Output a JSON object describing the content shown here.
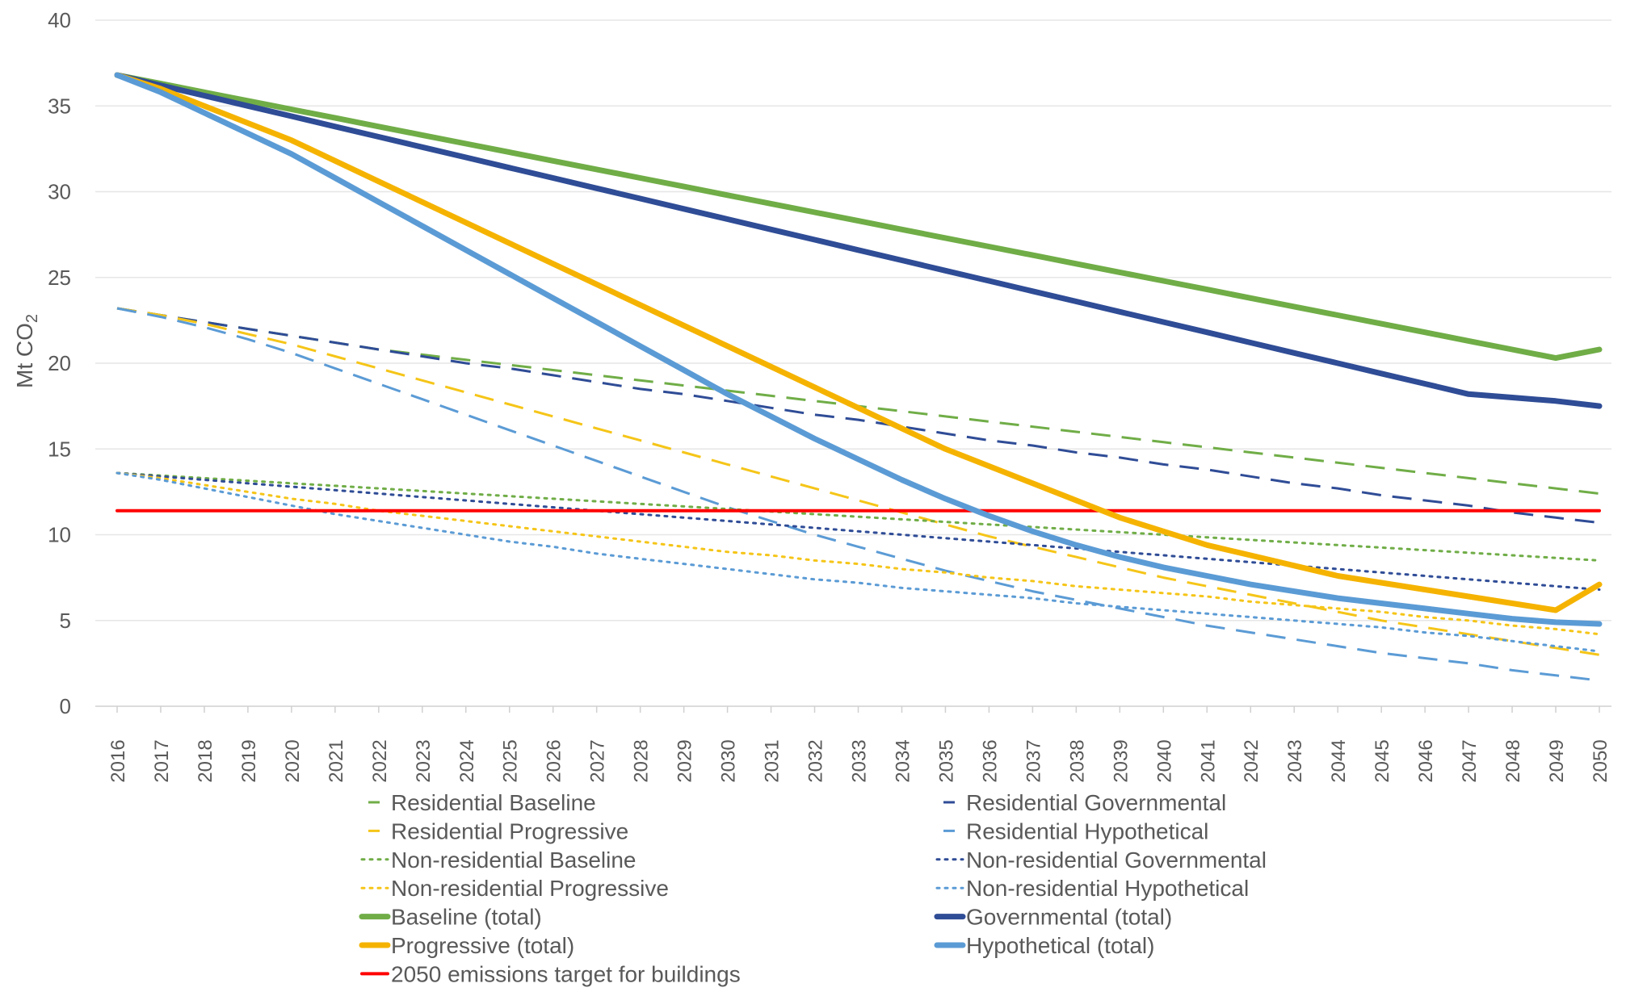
{
  "chart_data": {
    "type": "line",
    "ylabel_main": "Mt CO",
    "ylabel_sub": "2",
    "ylim": [
      0,
      40
    ],
    "yticks": [
      0,
      5,
      10,
      15,
      20,
      25,
      30,
      35,
      40
    ],
    "grid": true,
    "legend_position": "bottom",
    "x": [
      2016,
      2017,
      2018,
      2019,
      2020,
      2021,
      2022,
      2023,
      2024,
      2025,
      2026,
      2027,
      2028,
      2029,
      2030,
      2031,
      2032,
      2033,
      2034,
      2035,
      2036,
      2037,
      2038,
      2039,
      2040,
      2041,
      2042,
      2043,
      2044,
      2045,
      2046,
      2047,
      2048,
      2049,
      2050
    ],
    "series": [
      {
        "name": "Residential Baseline",
        "color": "#70ad47",
        "style": "dashed",
        "width": "thin",
        "values": [
          23.2,
          22.8,
          22.4,
          22.0,
          21.6,
          21.2,
          20.8,
          20.5,
          20.2,
          19.9,
          19.6,
          19.3,
          19.0,
          18.7,
          18.4,
          18.1,
          17.8,
          17.5,
          17.2,
          16.9,
          16.6,
          16.3,
          16.0,
          15.7,
          15.4,
          15.1,
          14.8,
          14.5,
          14.2,
          13.9,
          13.6,
          13.3,
          13.0,
          12.7,
          12.4
        ]
      },
      {
        "name": "Residential Governmental",
        "color": "#2f4c96",
        "style": "dashed",
        "width": "thin",
        "values": [
          23.2,
          22.8,
          22.4,
          22.0,
          21.6,
          21.2,
          20.8,
          20.4,
          20.0,
          19.7,
          19.3,
          18.9,
          18.5,
          18.2,
          17.8,
          17.4,
          17.0,
          16.7,
          16.3,
          15.9,
          15.5,
          15.2,
          14.8,
          14.5,
          14.1,
          13.8,
          13.4,
          13.0,
          12.7,
          12.3,
          12.0,
          11.7,
          11.3,
          11.0,
          10.7
        ]
      },
      {
        "name": "Residential Progressive",
        "color": "#f5c518",
        "style": "dashed",
        "width": "thin",
        "values": [
          23.2,
          22.8,
          22.3,
          21.7,
          21.1,
          20.4,
          19.7,
          19.0,
          18.3,
          17.6,
          16.9,
          16.2,
          15.5,
          14.8,
          14.1,
          13.4,
          12.7,
          12.0,
          11.3,
          10.6,
          9.9,
          9.3,
          8.7,
          8.1,
          7.5,
          7.0,
          6.5,
          6.0,
          5.5,
          5.0,
          4.6,
          4.2,
          3.8,
          3.4,
          3.0
        ]
      },
      {
        "name": "Residential Hypothetical",
        "color": "#5b9bd5",
        "style": "dashed",
        "width": "thin",
        "values": [
          23.2,
          22.7,
          22.1,
          21.4,
          20.6,
          19.7,
          18.8,
          17.9,
          17.0,
          16.1,
          15.2,
          14.3,
          13.4,
          12.5,
          11.6,
          10.8,
          10.0,
          9.3,
          8.6,
          7.9,
          7.3,
          6.7,
          6.2,
          5.7,
          5.2,
          4.7,
          4.3,
          3.9,
          3.5,
          3.1,
          2.8,
          2.5,
          2.1,
          1.8,
          1.5
        ]
      },
      {
        "name": "Non-residential Baseline",
        "color": "#70ad47",
        "style": "dotted",
        "width": "thin",
        "values": [
          13.6,
          13.45,
          13.3,
          13.15,
          13.0,
          12.85,
          12.7,
          12.55,
          12.4,
          12.25,
          12.1,
          11.95,
          11.8,
          11.65,
          11.5,
          11.35,
          11.2,
          11.05,
          10.9,
          10.75,
          10.6,
          10.45,
          10.3,
          10.15,
          10.0,
          9.85,
          9.7,
          9.55,
          9.4,
          9.25,
          9.1,
          8.95,
          8.8,
          8.65,
          8.5
        ]
      },
      {
        "name": "Non-residential Governmental",
        "color": "#2f4c96",
        "style": "dotted",
        "width": "thin",
        "values": [
          13.6,
          13.4,
          13.2,
          13.0,
          12.8,
          12.6,
          12.4,
          12.2,
          12.0,
          11.8,
          11.6,
          11.4,
          11.2,
          11.0,
          10.8,
          10.6,
          10.4,
          10.2,
          10.0,
          9.8,
          9.6,
          9.4,
          9.2,
          9.0,
          8.8,
          8.6,
          8.4,
          8.2,
          8.0,
          7.8,
          7.6,
          7.4,
          7.2,
          7.0,
          6.8
        ]
      },
      {
        "name": "Non-residential Progressive",
        "color": "#f5c518",
        "style": "dotted",
        "width": "thin",
        "values": [
          13.6,
          13.3,
          12.9,
          12.5,
          12.1,
          11.8,
          11.4,
          11.1,
          10.8,
          10.5,
          10.2,
          9.9,
          9.6,
          9.3,
          9.0,
          8.8,
          8.5,
          8.3,
          8.0,
          7.8,
          7.5,
          7.3,
          7.0,
          6.8,
          6.6,
          6.4,
          6.1,
          5.9,
          5.7,
          5.5,
          5.2,
          5.0,
          4.7,
          4.5,
          4.2
        ]
      },
      {
        "name": "Non-residential Hypothetical",
        "color": "#5b9bd5",
        "style": "dotted",
        "width": "thin",
        "values": [
          13.6,
          13.2,
          12.7,
          12.2,
          11.7,
          11.2,
          10.8,
          10.4,
          10.0,
          9.6,
          9.3,
          8.9,
          8.6,
          8.3,
          8.0,
          7.7,
          7.4,
          7.2,
          6.9,
          6.7,
          6.5,
          6.3,
          6.0,
          5.8,
          5.6,
          5.4,
          5.2,
          5.0,
          4.8,
          4.6,
          4.3,
          4.1,
          3.8,
          3.5,
          3.2
        ]
      },
      {
        "name": "Baseline (total)",
        "color": "#70ad47",
        "style": "solid",
        "width": "thick",
        "values": [
          36.8,
          36.3,
          35.8,
          35.3,
          34.8,
          34.3,
          33.8,
          33.3,
          32.8,
          32.3,
          31.8,
          31.3,
          30.8,
          30.3,
          29.8,
          29.3,
          28.8,
          28.3,
          27.8,
          27.3,
          26.8,
          26.3,
          25.8,
          25.3,
          24.8,
          24.3,
          23.8,
          23.3,
          22.8,
          22.3,
          21.8,
          21.3,
          20.8,
          20.3,
          20.8
        ]
      },
      {
        "name": "Governmental (total)",
        "color": "#2f4c96",
        "style": "solid",
        "width": "thick",
        "values": [
          36.8,
          36.2,
          35.6,
          35.0,
          34.4,
          33.8,
          33.2,
          32.6,
          32.0,
          31.4,
          30.8,
          30.2,
          29.6,
          29.0,
          28.4,
          27.8,
          27.2,
          26.6,
          26.0,
          25.4,
          24.8,
          24.2,
          23.6,
          23.0,
          22.4,
          21.8,
          21.2,
          20.6,
          20.0,
          19.4,
          18.8,
          18.2,
          18.0,
          17.8,
          17.5
        ]
      },
      {
        "name": "Progressive (total)",
        "color": "#f5b300",
        "style": "solid",
        "width": "thick",
        "values": [
          36.8,
          36.0,
          35.0,
          34.0,
          33.0,
          31.8,
          30.6,
          29.4,
          28.2,
          27.0,
          25.8,
          24.6,
          23.4,
          22.2,
          21.0,
          19.8,
          18.6,
          17.4,
          16.2,
          15.0,
          14.0,
          13.0,
          12.0,
          11.0,
          10.2,
          9.4,
          8.8,
          8.2,
          7.6,
          7.2,
          6.8,
          6.4,
          6.0,
          5.6,
          7.1
        ]
      },
      {
        "name": "Hypothetical (total)",
        "color": "#5b9bd5",
        "style": "solid",
        "width": "thick",
        "values": [
          36.8,
          35.8,
          34.6,
          33.4,
          32.2,
          30.8,
          29.4,
          28.0,
          26.6,
          25.2,
          23.8,
          22.4,
          21.0,
          19.6,
          18.2,
          16.9,
          15.6,
          14.4,
          13.2,
          12.1,
          11.1,
          10.2,
          9.4,
          8.7,
          8.1,
          7.6,
          7.1,
          6.7,
          6.3,
          6.0,
          5.7,
          5.4,
          5.1,
          4.9,
          4.8
        ]
      },
      {
        "name": "2050 emissions target for buildings",
        "color": "#ff0000",
        "style": "solid",
        "width": "medium",
        "values": [
          11.4,
          11.4,
          11.4,
          11.4,
          11.4,
          11.4,
          11.4,
          11.4,
          11.4,
          11.4,
          11.4,
          11.4,
          11.4,
          11.4,
          11.4,
          11.4,
          11.4,
          11.4,
          11.4,
          11.4,
          11.4,
          11.4,
          11.4,
          11.4,
          11.4,
          11.4,
          11.4,
          11.4,
          11.4,
          11.4,
          11.4,
          11.4,
          11.4,
          11.4,
          11.4
        ]
      }
    ]
  }
}
